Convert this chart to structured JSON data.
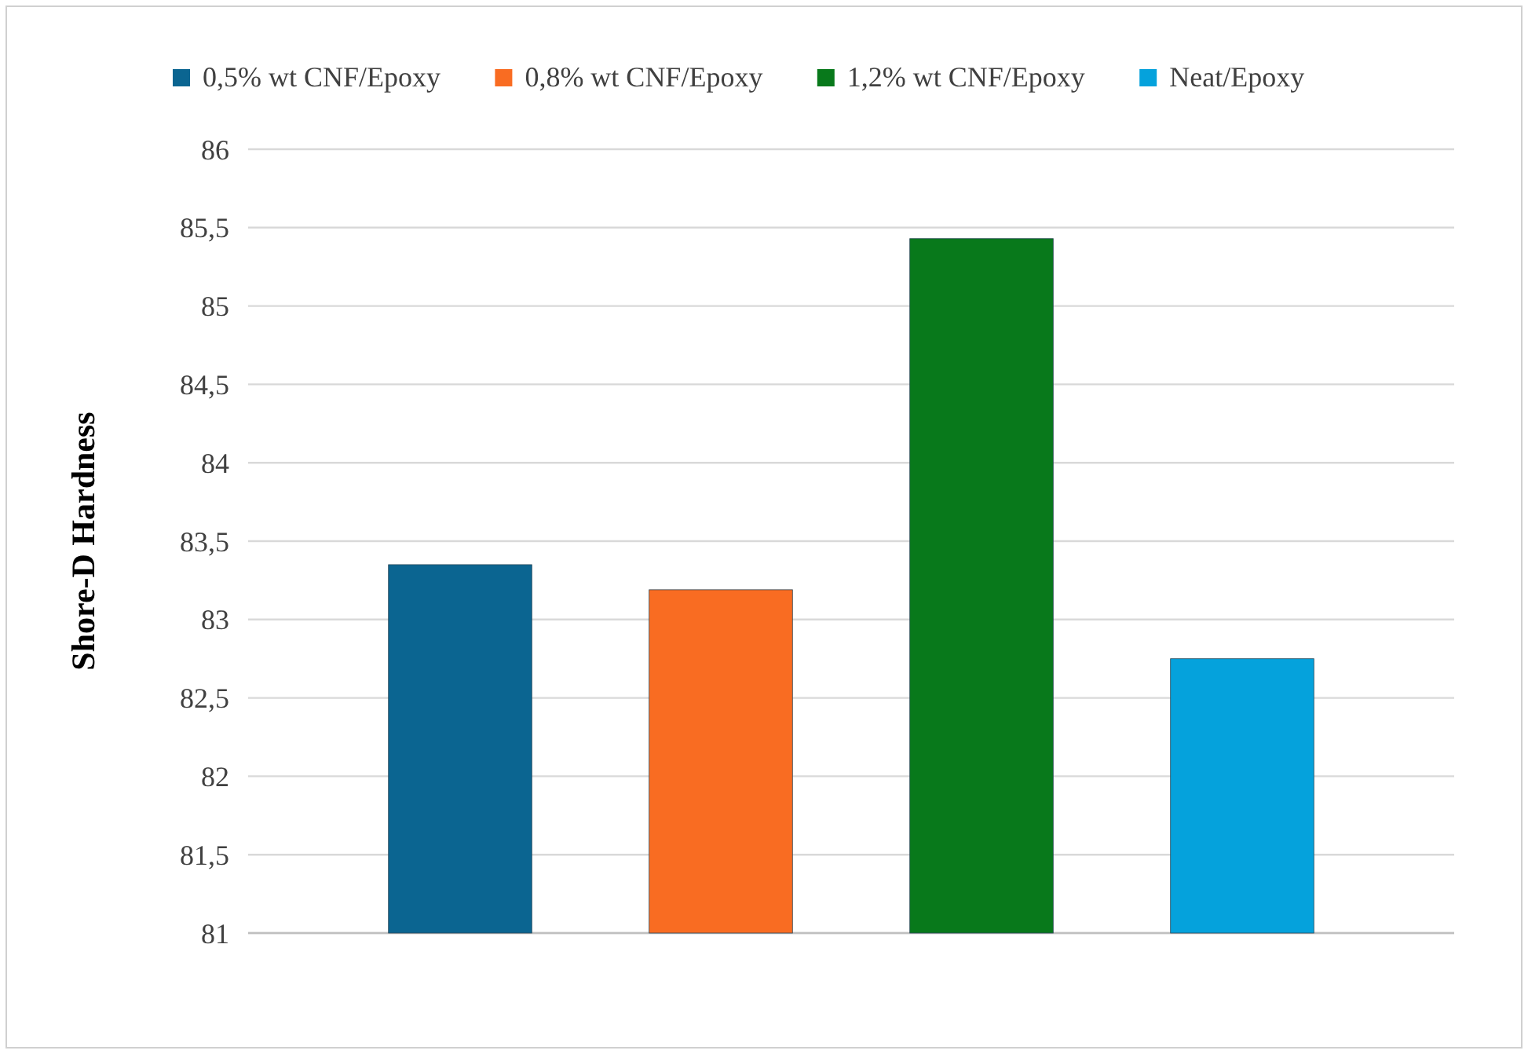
{
  "chart_data": {
    "type": "bar",
    "ylabel": "Shore-D Hardness",
    "categories": [
      null
    ],
    "series": [
      {
        "name": "0,5% wt CNF/Epoxy",
        "color": "#0b6591",
        "values": [
          83.35
        ]
      },
      {
        "name": "0,8% wt CNF/Epoxy",
        "color": "#f96c22",
        "values": [
          83.19
        ]
      },
      {
        "name": "1,2% wt CNF/Epoxy",
        "color": "#08791b",
        "values": [
          85.43
        ]
      },
      {
        "name": "Neat/Epoxy",
        "color": "#05a2dc",
        "values": [
          82.75
        ]
      }
    ],
    "ylim": [
      81,
      86
    ],
    "yticks": [
      81,
      {
        "value": 81.5,
        "label": "81,5"
      },
      82,
      {
        "value": 82.5,
        "label": "82,5"
      },
      83,
      {
        "value": 83.5,
        "label": "83,5"
      },
      84,
      {
        "value": 84.5,
        "label": "84,5"
      },
      85,
      {
        "value": 85.5,
        "label": "85,5"
      },
      86
    ],
    "grid": "y",
    "legend": "top"
  }
}
